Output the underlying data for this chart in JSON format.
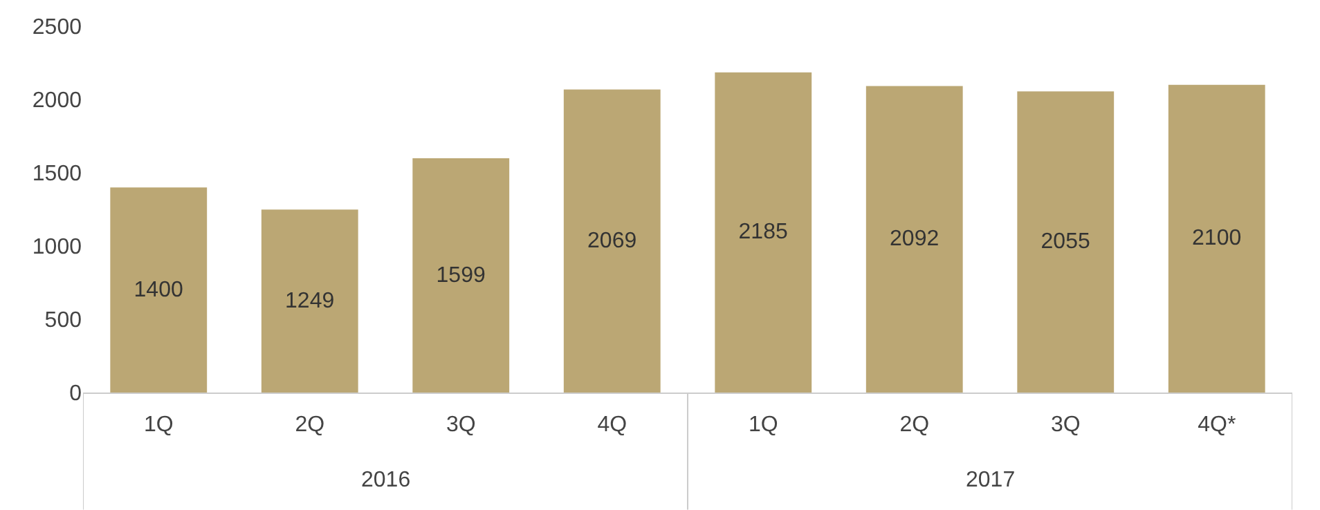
{
  "chart_data": {
    "type": "bar",
    "categories": [
      "1Q",
      "2Q",
      "3Q",
      "4Q",
      "1Q",
      "2Q",
      "3Q",
      "4Q*"
    ],
    "values": [
      1400,
      1249,
      1599,
      2069,
      2185,
      2092,
      2055,
      2100
    ],
    "color": "#bba774",
    "ylim": [
      0,
      2500
    ],
    "yticks": [
      0,
      500,
      1000,
      1500,
      2000,
      2500
    ],
    "data_labels": true,
    "annotations": [
      "2016",
      "2017"
    ]
  }
}
